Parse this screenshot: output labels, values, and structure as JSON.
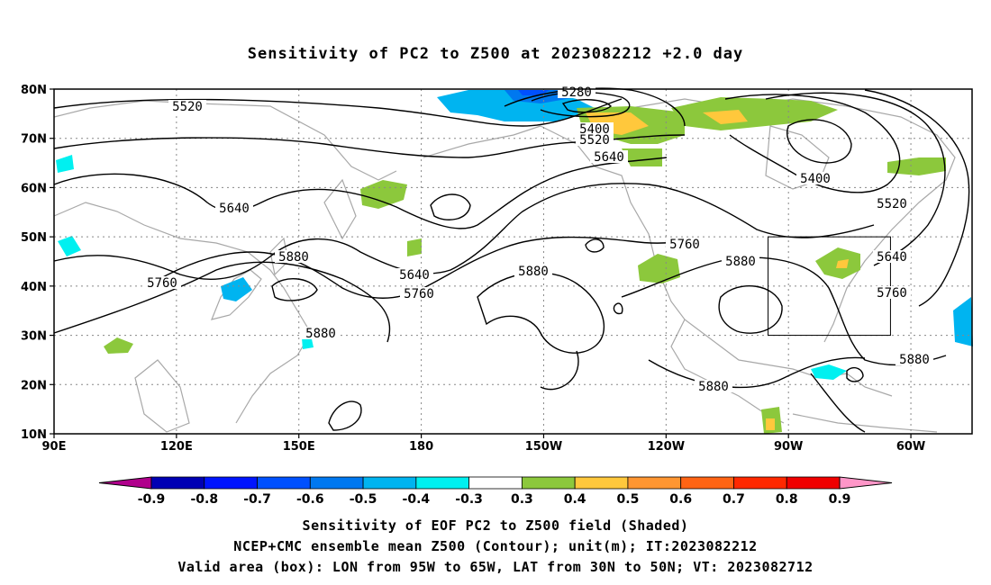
{
  "title": "Sensitivity of PC2 to Z500 at 2023082212 +2.0 day",
  "map": {
    "lon_range_east": [
      90,
      315
    ],
    "lat_range": [
      10,
      80
    ],
    "lon_ticks": [
      "90E",
      "120E",
      "150E",
      "180",
      "150W",
      "120W",
      "90W",
      "60W"
    ],
    "lat_ticks": [
      "10N",
      "20N",
      "30N",
      "40N",
      "50N",
      "60N",
      "70N",
      "80N"
    ],
    "grid": "dotted",
    "valid_box": {
      "lon_west": -95,
      "lon_east": -65,
      "lat_south": 30,
      "lat_north": 50
    },
    "contour_labels": [
      "5280",
      "5400",
      "5400",
      "5520",
      "5520",
      "5520",
      "5640",
      "5640",
      "5640",
      "5640",
      "5760",
      "5760",
      "5760",
      "5760",
      "5880",
      "5880",
      "5880",
      "5880",
      "5880",
      "5880"
    ]
  },
  "colorbar": {
    "labels": [
      "-0.9",
      "-0.8",
      "-0.7",
      "-0.6",
      "-0.5",
      "-0.4",
      "-0.3",
      "0.3",
      "0.4",
      "0.5",
      "0.6",
      "0.7",
      "0.8",
      "0.9"
    ],
    "colors": [
      "#b0008c",
      "#0000b4",
      "#0014ff",
      "#0050ff",
      "#0078f0",
      "#00b4f0",
      "#00f0f0",
      "#ffffff",
      "#8cc83c",
      "#ffc83c",
      "#ff9632",
      "#ff6414",
      "#ff2800",
      "#f00000",
      "#ff96c8"
    ]
  },
  "captions": [
    "Sensitivity of EOF PC2 to Z500 field (Shaded)",
    "NCEP+CMC ensemble mean Z500 (Contour); unit(m); IT:2023082212",
    "Valid area (box): LON from 95W to 65W, LAT from 30N to 50N; VT: 2023082712"
  ]
}
